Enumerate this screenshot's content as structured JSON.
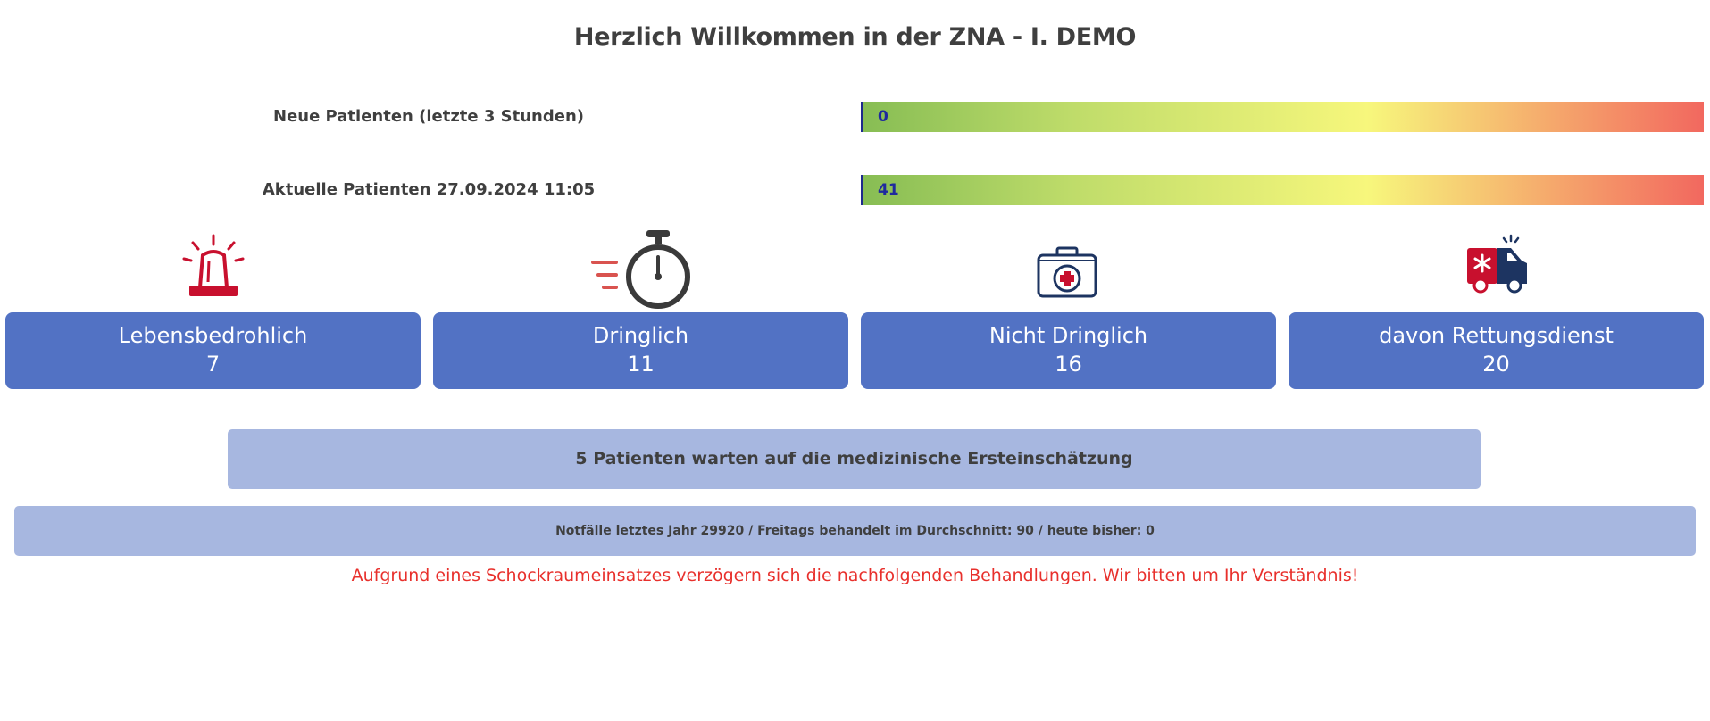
{
  "title": "Herzlich Willkommen in der ZNA - I. DEMO",
  "meters": [
    {
      "label": "Neue Patienten (letzte 3 Stunden)",
      "value": "0"
    },
    {
      "label": "Aktuelle Patienten 27.09.2024 11:05",
      "value": "41"
    }
  ],
  "categories": [
    {
      "icon": "alarm-siren-icon",
      "label": "Lebensbedrohlich",
      "count": "7"
    },
    {
      "icon": "stopwatch-icon",
      "label": "Dringlich",
      "count": "11"
    },
    {
      "icon": "first-aid-kit-icon",
      "label": "Nicht Dringlich",
      "count": "16"
    },
    {
      "icon": "ambulance-icon",
      "label": "davon Rettungsdienst",
      "count": "20"
    }
  ],
  "waiting_text": "5 Patienten warten auf die medizinische Ersteinschätzung",
  "stats_text": "Notfälle letztes Jahr 29920 / Freitags behandelt im Durchschnitt: 90 / heute bisher: 0",
  "notice_text": "Aufgrund eines Schockraumeinsatzes verzögern sich die nachfolgenden Behandlungen. Wir bitten um Ihr Verständnis!",
  "colors": {
    "card": "#5272c4",
    "banner": "#a7b7e0",
    "notice": "#e8302c",
    "icon_red": "#c8102e",
    "icon_navy": "#1d3461"
  }
}
